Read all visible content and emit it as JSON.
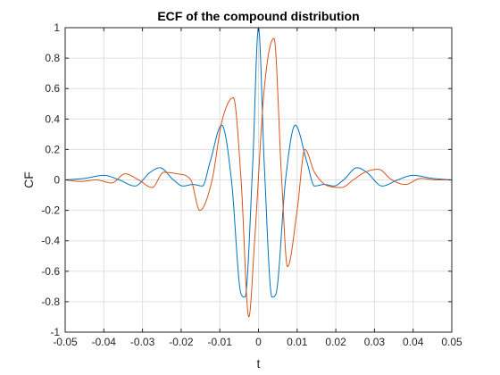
{
  "chart_data": {
    "type": "line",
    "title": "ECF of the compound distribution",
    "xlabel": "t",
    "ylabel": "CF",
    "xlim": [
      -0.05,
      0.05
    ],
    "ylim": [
      -1,
      1
    ],
    "xticks": [
      "-0.05",
      "-0.04",
      "-0.03",
      "-0.02",
      "-0.01",
      "0",
      "0.01",
      "0.02",
      "0.03",
      "0.04",
      "0.05"
    ],
    "yticks": [
      "-1",
      "-0.8",
      "-0.6",
      "-0.4",
      "-0.2",
      "0",
      "0.2",
      "0.4",
      "0.6",
      "0.8",
      "1"
    ],
    "grid": true,
    "legend": "none",
    "series": [
      {
        "color": "#0072BD",
        "x": [
          -0.05,
          -0.045,
          -0.04,
          -0.036,
          -0.032,
          -0.028,
          -0.0255,
          -0.022,
          -0.0195,
          -0.017,
          -0.0145,
          -0.0125,
          -0.0095,
          -0.007,
          -0.0045,
          -0.0035,
          -0.0015,
          0,
          0.0015,
          0.0035,
          0.0045,
          0.007,
          0.0095,
          0.0125,
          0.0145,
          0.017,
          0.0195,
          0.022,
          0.0255,
          0.028,
          0.032,
          0.036,
          0.04,
          0.045,
          0.05
        ],
        "y": [
          0.0,
          0.01,
          0.03,
          0.0,
          -0.04,
          0.05,
          0.08,
          0.0,
          -0.04,
          -0.03,
          -0.04,
          0.12,
          0.36,
          0.0,
          -0.75,
          -0.77,
          0.1,
          1.0,
          0.1,
          -0.77,
          -0.75,
          0.0,
          0.36,
          0.12,
          -0.04,
          -0.03,
          -0.04,
          0.0,
          0.08,
          0.05,
          -0.04,
          0.0,
          0.03,
          0.01,
          0.0
        ]
      },
      {
        "color": "#D95319",
        "x": [
          -0.05,
          -0.046,
          -0.042,
          -0.038,
          -0.0345,
          -0.031,
          -0.0275,
          -0.0245,
          -0.021,
          -0.0175,
          -0.0152,
          -0.012,
          -0.0095,
          -0.0065,
          -0.0045,
          -0.0025,
          -0.001,
          0.0015,
          0.004,
          0.006,
          0.0075,
          0.01,
          0.012,
          0.0145,
          0.018,
          0.0215,
          0.0245,
          0.0275,
          0.031,
          0.0345,
          0.038,
          0.042,
          0.046,
          0.05
        ],
        "y": [
          0.0,
          -0.01,
          0.0,
          -0.02,
          0.04,
          0.0,
          -0.05,
          0.05,
          0.04,
          0.0,
          -0.2,
          0.0,
          0.38,
          0.54,
          0.0,
          -0.9,
          -0.4,
          0.6,
          0.93,
          0.0,
          -0.57,
          -0.2,
          0.2,
          0.05,
          -0.04,
          -0.05,
          0.0,
          0.05,
          0.07,
          0.0,
          -0.03,
          0.01,
          0.0,
          0.0
        ]
      }
    ]
  }
}
